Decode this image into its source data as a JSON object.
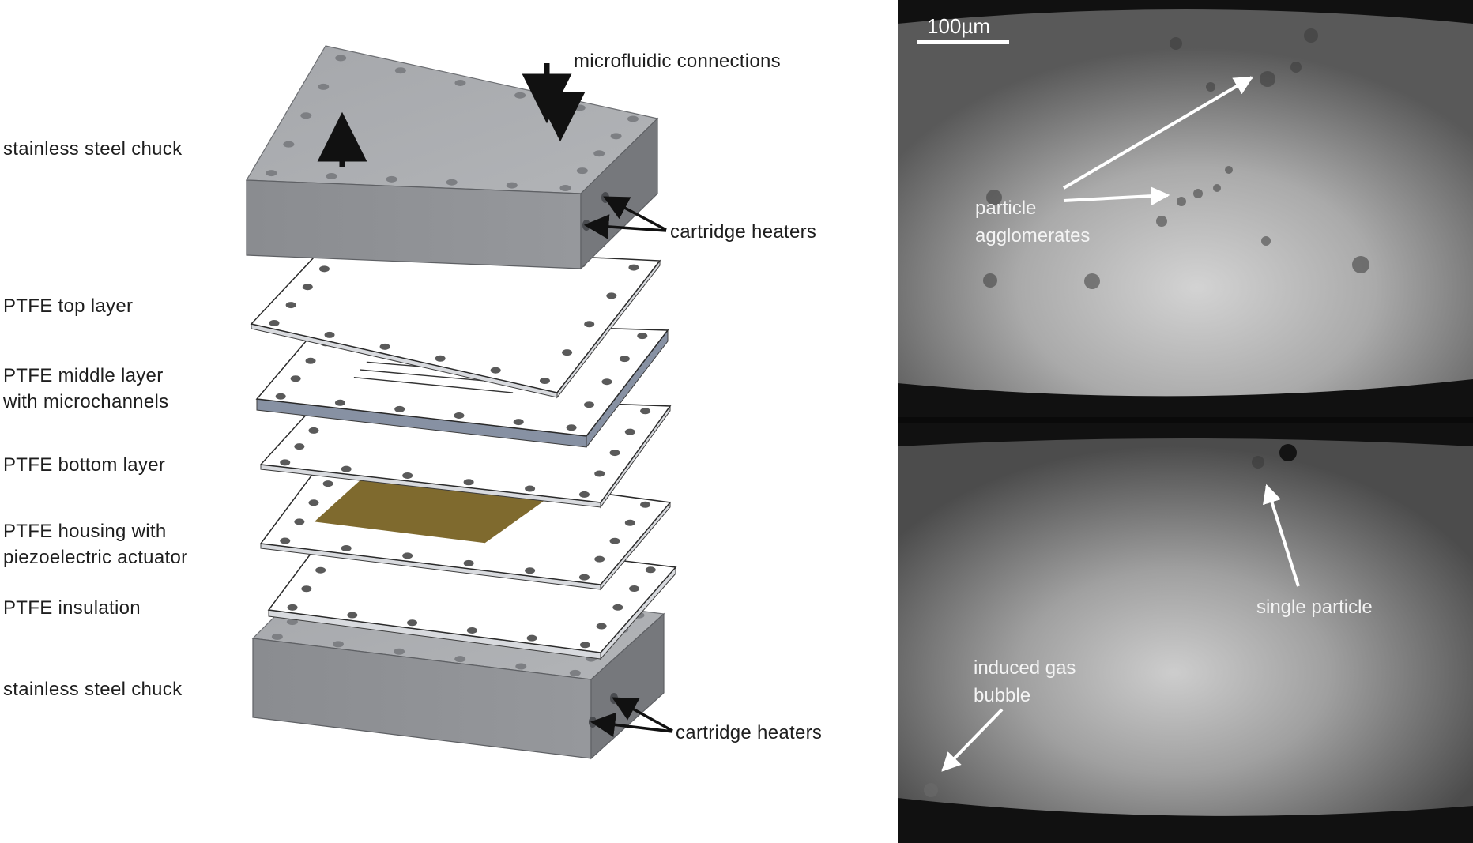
{
  "diagram": {
    "layer_labels": [
      {
        "text": "stainless steel chuck"
      },
      {
        "text": "PTFE top layer"
      },
      {
        "text": "PTFE middle layer",
        "line2": "with microchannels"
      },
      {
        "text": "PTFE bottom layer"
      },
      {
        "text": "PTFE housing with",
        "line2": "piezoelectric actuator"
      },
      {
        "text": "PTFE insulation"
      },
      {
        "text": "stainless steel chuck"
      }
    ],
    "callouts": {
      "microfluidic": "microfluidic connections",
      "heaters_top": "cartridge heaters",
      "heaters_bottom": "cartridge heaters"
    },
    "colors": {
      "steel_top": "#a9abae",
      "steel_front": "#8d8f93",
      "steel_side": "#76787c",
      "ptfe": "#ffffff",
      "ptfe_edge": "#7a8595",
      "piezo": "#7f6a2e"
    }
  },
  "micrographs": {
    "scale_bar": "100µm",
    "top": {
      "label_agglomerates_1": "particle",
      "label_agglomerates_2": "agglomerates"
    },
    "bottom": {
      "label_single": "single particle",
      "label_bubble_1": "induced gas",
      "label_bubble_2": "bubble"
    }
  }
}
